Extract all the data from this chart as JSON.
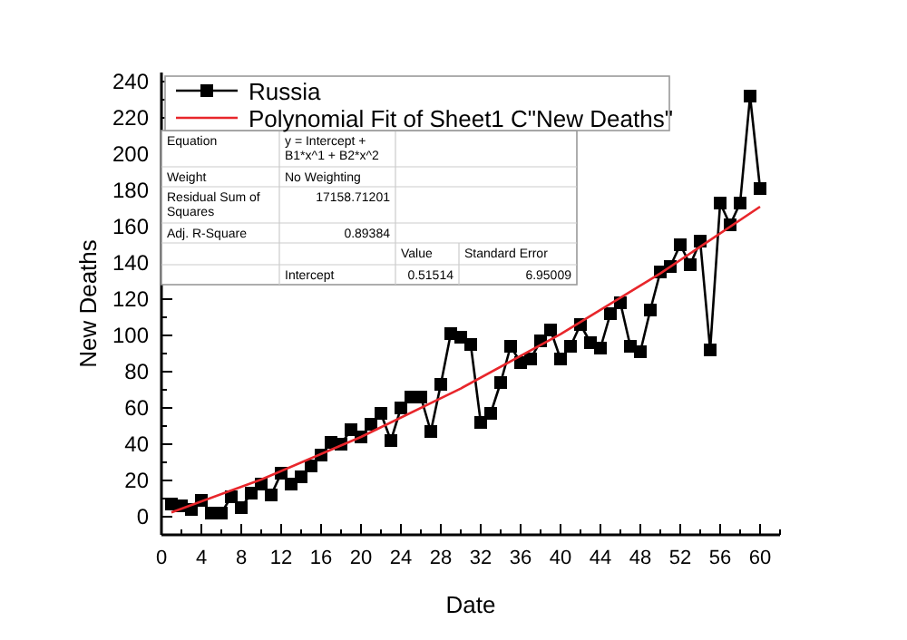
{
  "chart_data": {
    "type": "line",
    "xlabel": "Date",
    "ylabel": "New Deaths",
    "xlim": [
      0,
      62
    ],
    "ylim": [
      -10,
      245
    ],
    "xticks": [
      0,
      4,
      8,
      12,
      16,
      20,
      24,
      28,
      32,
      36,
      40,
      44,
      48,
      52,
      56,
      60
    ],
    "yticks": [
      0,
      20,
      40,
      60,
      80,
      100,
      120,
      140,
      160,
      180,
      200,
      220,
      240
    ],
    "legend": "top",
    "grid": false,
    "series": [
      {
        "name": "Russia",
        "color": "#000000",
        "marker": "square",
        "x": [
          1,
          2,
          3,
          4,
          5,
          6,
          7,
          8,
          9,
          10,
          11,
          12,
          13,
          14,
          15,
          16,
          17,
          18,
          19,
          20,
          21,
          22,
          23,
          24,
          25,
          26,
          27,
          28,
          29,
          30,
          31,
          32,
          33,
          34,
          35,
          36,
          37,
          38,
          39,
          40,
          41,
          42,
          43,
          44,
          45,
          46,
          47,
          48,
          49,
          50,
          51,
          52,
          53,
          54,
          55,
          56,
          57,
          58,
          59,
          60
        ],
        "values": [
          7,
          6,
          4,
          9,
          2,
          2,
          11,
          5,
          13,
          18,
          12,
          24,
          18,
          22,
          28,
          34,
          41,
          40,
          48,
          44,
          51,
          57,
          42,
          60,
          66,
          66,
          47,
          73,
          101,
          99,
          95,
          52,
          57,
          74,
          94,
          85,
          87,
          97,
          103,
          87,
          94,
          106,
          96,
          93,
          112,
          118,
          94,
          91,
          114,
          135,
          138,
          150,
          139,
          152,
          92,
          173,
          161,
          173,
          232,
          181
        ]
      },
      {
        "name": "Polynomial Fit of Sheet1 C\"New Deaths\"",
        "color": "#e8262b",
        "marker": "none",
        "x": [
          1,
          10,
          20,
          30,
          40,
          50,
          60
        ],
        "values": [
          2.4,
          20.5,
          44,
          70.7,
          100.7,
          134.2,
          171
        ]
      }
    ],
    "annotations": [
      "Equation",
      "y = Intercept + B1*x^1 + B2*x^2",
      "Weight",
      "No Weighting",
      "Residual Sum of Squares",
      "17158.71201",
      "Adj. R-Square",
      "0.89384",
      "Value",
      "Standard Error",
      "Intercept",
      "0.51514",
      "6.95009"
    ]
  }
}
